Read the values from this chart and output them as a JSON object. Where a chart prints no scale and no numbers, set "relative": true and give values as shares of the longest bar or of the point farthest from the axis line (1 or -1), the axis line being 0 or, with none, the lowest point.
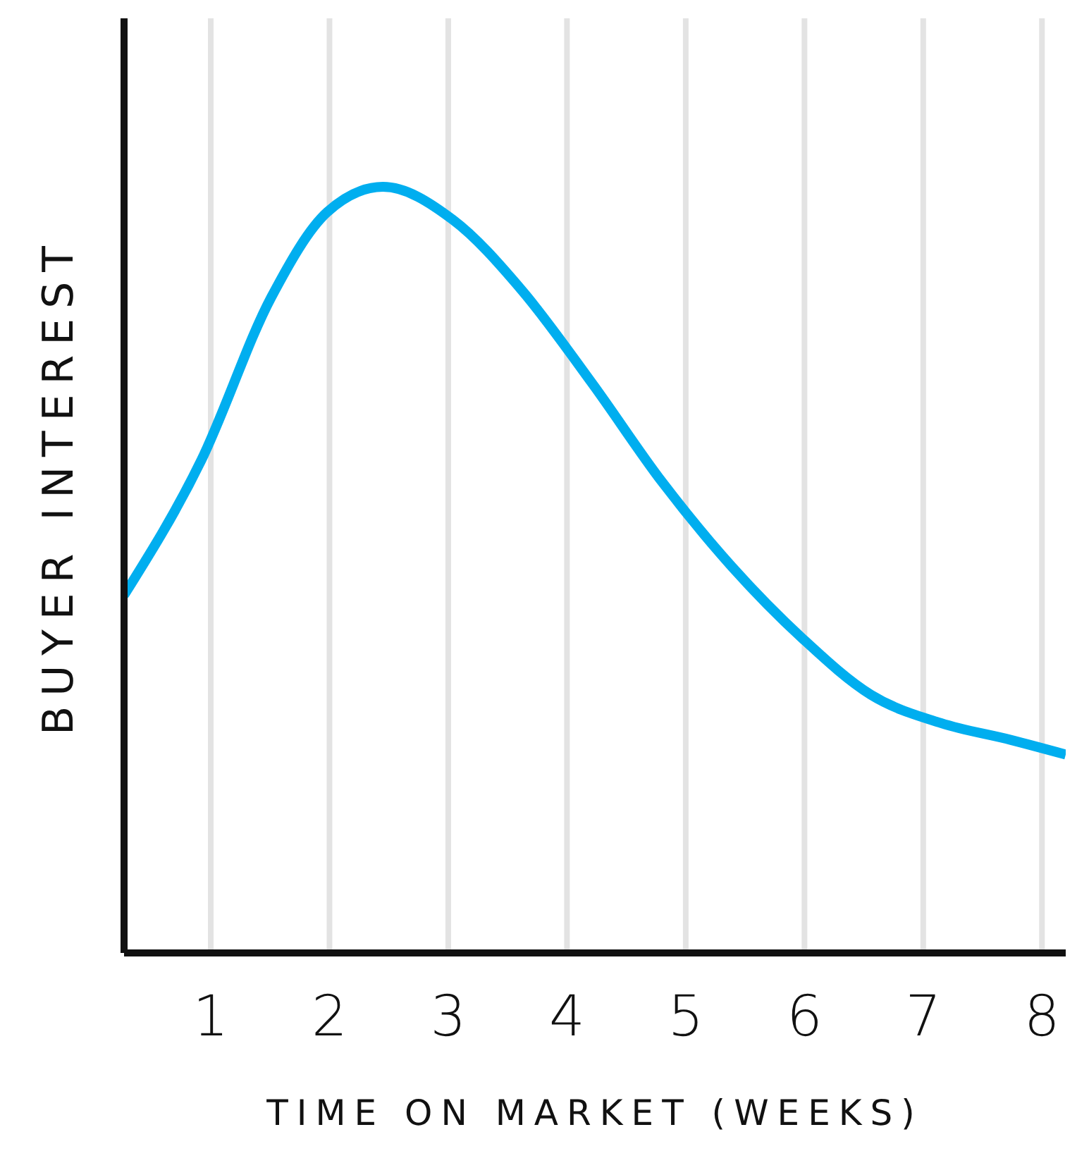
{
  "chart_data": {
    "type": "line",
    "relative": true,
    "xlabel": "TIME ON MARKET (WEEKS)",
    "ylabel": "BUYER INTEREST",
    "xlim": [
      0.27,
      8.2
    ],
    "xticks": [
      1,
      2,
      3,
      4,
      5,
      6,
      7,
      8
    ],
    "grid": true,
    "marker": "none",
    "line_style": "solid",
    "x": [
      0.27,
      0.92,
      1.51,
      1.98,
      2.45,
      3.04,
      3.62,
      4.21,
      4.8,
      5.39,
      5.98,
      6.56,
      7.15,
      7.74,
      8.2
    ],
    "series": [
      {
        "color": "#00aeef",
        "values": [
          0.467,
          0.643,
          0.856,
          0.967,
          1.0,
          0.957,
          0.865,
          0.744,
          0.615,
          0.504,
          0.411,
          0.337,
          0.3,
          0.278,
          0.259
        ]
      }
    ]
  }
}
